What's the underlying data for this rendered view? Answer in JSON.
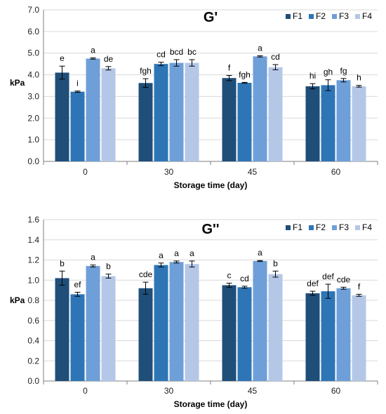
{
  "chart_data": [
    {
      "type": "bar",
      "title": "G'",
      "xlabel": "Storage time (day)",
      "ylabel": "kPa",
      "ylim": [
        0,
        7
      ],
      "yticks": [
        "0.0",
        "1.0",
        "2.0",
        "3.0",
        "4.0",
        "5.0",
        "6.0",
        "7.0"
      ],
      "categories": [
        "0",
        "30",
        "45",
        "60"
      ],
      "legend_position": "top-right",
      "grid": true,
      "series": [
        {
          "name": "F1",
          "color": "#1f4e79",
          "values": [
            4.1,
            3.62,
            3.85,
            3.47
          ],
          "errors": [
            0.3,
            0.2,
            0.12,
            0.12
          ],
          "labels": [
            "e",
            "fgh",
            "f",
            "hi"
          ]
        },
        {
          "name": "F2",
          "color": "#2e75b6",
          "values": [
            3.22,
            4.5,
            3.63,
            3.52
          ],
          "errors": [
            0.03,
            0.08,
            0.02,
            0.25
          ],
          "labels": [
            "i",
            "cd",
            "fgh",
            "gh"
          ]
        },
        {
          "name": "F3",
          "color": "#6f9fd8",
          "values": [
            4.75,
            4.55,
            4.85,
            3.75
          ],
          "errors": [
            0.03,
            0.15,
            0.03,
            0.08
          ],
          "labels": [
            "a",
            "bcd",
            "a",
            "fg"
          ]
        },
        {
          "name": "F4",
          "color": "#b4c7e7",
          "values": [
            4.3,
            4.55,
            4.35,
            3.47
          ],
          "errors": [
            0.08,
            0.15,
            0.12,
            0.04
          ],
          "labels": [
            "de",
            "bc",
            "cd",
            "h"
          ]
        }
      ]
    },
    {
      "type": "bar",
      "title": "G''",
      "xlabel": "Storage time (day)",
      "ylabel": "kPa",
      "ylim": [
        0,
        1.6
      ],
      "yticks": [
        "0.0",
        "0.2",
        "0.4",
        "0.6",
        "0.8",
        "1.0",
        "1.2",
        "1.4",
        "1.6"
      ],
      "categories": [
        "0",
        "30",
        "45",
        "60"
      ],
      "legend_position": "top-right",
      "grid": true,
      "series": [
        {
          "name": "F1",
          "color": "#1f4e79",
          "values": [
            1.02,
            0.92,
            0.95,
            0.87
          ],
          "errors": [
            0.07,
            0.06,
            0.02,
            0.02
          ],
          "labels": [
            "b",
            "cde",
            "c",
            "def"
          ]
        },
        {
          "name": "F2",
          "color": "#2e75b6",
          "values": [
            0.86,
            1.15,
            0.93,
            0.89
          ],
          "errors": [
            0.02,
            0.02,
            0.01,
            0.07
          ],
          "labels": [
            "ef",
            "a",
            "cd",
            "def"
          ]
        },
        {
          "name": "F3",
          "color": "#6f9fd8",
          "values": [
            1.14,
            1.18,
            1.19,
            0.92
          ],
          "errors": [
            0.01,
            0.01,
            0.005,
            0.01
          ],
          "labels": [
            "a",
            "a",
            "a",
            "cde"
          ]
        },
        {
          "name": "F4",
          "color": "#b4c7e7",
          "values": [
            1.04,
            1.16,
            1.06,
            0.85
          ],
          "errors": [
            0.02,
            0.03,
            0.03,
            0.01
          ],
          "labels": [
            "b",
            "a",
            "b",
            "f"
          ]
        }
      ]
    }
  ]
}
